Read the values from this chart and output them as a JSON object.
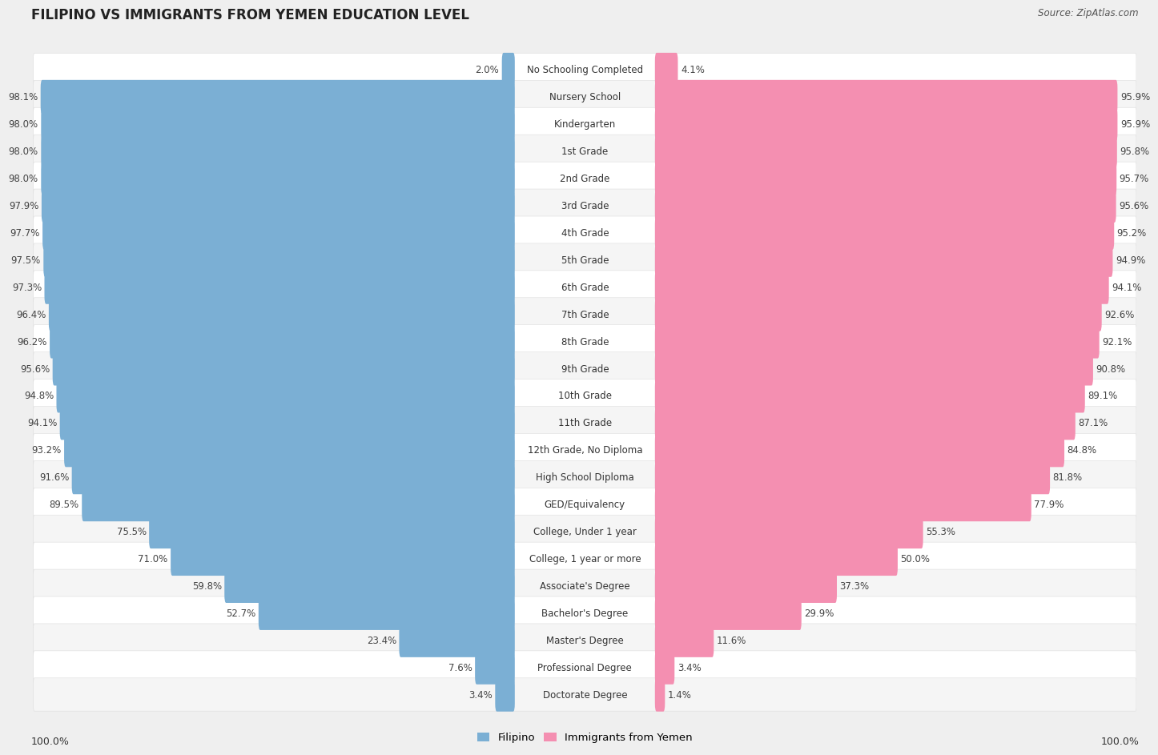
{
  "title": "FILIPINO VS IMMIGRANTS FROM YEMEN EDUCATION LEVEL",
  "source": "Source: ZipAtlas.com",
  "categories": [
    "No Schooling Completed",
    "Nursery School",
    "Kindergarten",
    "1st Grade",
    "2nd Grade",
    "3rd Grade",
    "4th Grade",
    "5th Grade",
    "6th Grade",
    "7th Grade",
    "8th Grade",
    "9th Grade",
    "10th Grade",
    "11th Grade",
    "12th Grade, No Diploma",
    "High School Diploma",
    "GED/Equivalency",
    "College, Under 1 year",
    "College, 1 year or more",
    "Associate's Degree",
    "Bachelor's Degree",
    "Master's Degree",
    "Professional Degree",
    "Doctorate Degree"
  ],
  "filipino": [
    2.0,
    98.1,
    98.0,
    98.0,
    98.0,
    97.9,
    97.7,
    97.5,
    97.3,
    96.4,
    96.2,
    95.6,
    94.8,
    94.1,
    93.2,
    91.6,
    89.5,
    75.5,
    71.0,
    59.8,
    52.7,
    23.4,
    7.6,
    3.4
  ],
  "yemen": [
    4.1,
    95.9,
    95.9,
    95.8,
    95.7,
    95.6,
    95.2,
    94.9,
    94.1,
    92.6,
    92.1,
    90.8,
    89.1,
    87.1,
    84.8,
    81.8,
    77.9,
    55.3,
    50.0,
    37.3,
    29.9,
    11.6,
    3.4,
    1.4
  ],
  "filipino_color": "#7bafd4",
  "yemen_color": "#f48fb1",
  "background_color": "#efefef",
  "label_fontsize": 8.5,
  "value_fontsize": 8.5,
  "title_fontsize": 12,
  "source_fontsize": 8.5
}
